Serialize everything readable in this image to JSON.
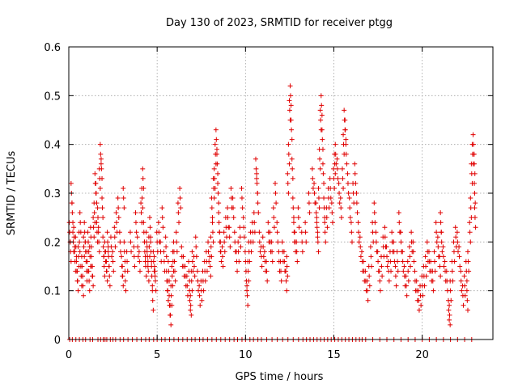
{
  "chart_data": {
    "type": "scatter",
    "title": "Day 130 of 2023, SRMTID for receiver ptgg",
    "xlabel": "GPS time / hours",
    "ylabel": "SRMTID / TECUs",
    "xlim": [
      0,
      24
    ],
    "ylim": [
      0,
      0.6
    ],
    "xticks": [
      0,
      5,
      10,
      15,
      20
    ],
    "yticks": [
      0,
      0.1,
      0.2,
      0.3,
      0.4,
      0.5,
      0.6
    ],
    "xtick_labels": [
      "0",
      "5",
      "10",
      "15",
      "20"
    ],
    "ytick_labels": [
      "0",
      "0.1",
      "0.2",
      "0.3",
      "0.4",
      "0.5",
      "0.6"
    ],
    "grid": true,
    "marker": "plus",
    "color": "#e00000",
    "series": [
      {
        "name": "SRMTID",
        "points": [
          [
            0.05,
            0.22
          ],
          [
            0.1,
            0.18
          ],
          [
            0.15,
            0.3
          ],
          [
            0.2,
            0.26
          ],
          [
            0.25,
            0.2
          ],
          [
            0.3,
            0.21
          ],
          [
            0.35,
            0.16
          ],
          [
            0.4,
            0.19
          ],
          [
            0.45,
            0.14
          ],
          [
            0.5,
            0.12
          ],
          [
            0.55,
            0.17
          ],
          [
            0.6,
            0.2
          ],
          [
            0.65,
            0.24
          ],
          [
            0.7,
            0.13
          ],
          [
            0.75,
            0.15
          ],
          [
            0.8,
            0.11
          ],
          [
            0.85,
            0.19
          ],
          [
            0.9,
            0.22
          ],
          [
            0.95,
            0.18
          ],
          [
            1.0,
            0.14
          ],
          [
            1.05,
            0.16
          ],
          [
            1.1,
            0.2
          ],
          [
            1.15,
            0.12
          ],
          [
            1.2,
            0.17
          ],
          [
            1.25,
            0.21
          ],
          [
            1.3,
            0.15
          ],
          [
            1.35,
            0.13
          ],
          [
            1.4,
            0.23
          ],
          [
            1.45,
            0.26
          ],
          [
            1.5,
            0.32
          ],
          [
            1.55,
            0.3
          ],
          [
            1.6,
            0.22
          ],
          [
            1.65,
            0.25
          ],
          [
            1.7,
            0.2
          ],
          [
            1.75,
            0.33
          ],
          [
            1.8,
            0.38
          ],
          [
            1.85,
            0.35
          ],
          [
            1.9,
            0.27
          ],
          [
            1.95,
            0.19
          ],
          [
            2.0,
            0.15
          ],
          [
            2.05,
            0.18
          ],
          [
            2.1,
            0.16
          ],
          [
            2.15,
            0.14
          ],
          [
            2.2,
            0.2
          ],
          [
            2.25,
            0.17
          ],
          [
            2.3,
            0.13
          ],
          [
            2.4,
            0.19
          ],
          [
            2.5,
            0.16
          ],
          [
            2.6,
            0.21
          ],
          [
            2.7,
            0.24
          ],
          [
            2.8,
            0.27
          ],
          [
            2.9,
            0.2
          ],
          [
            3.0,
            0.15
          ],
          [
            3.05,
            0.13
          ],
          [
            3.1,
            0.29
          ],
          [
            3.15,
            0.18
          ],
          [
            3.2,
            0.12
          ],
          [
            3.3,
            0.16
          ],
          [
            3.5,
            0.2
          ],
          [
            3.7,
            0.17
          ],
          [
            3.8,
            0.24
          ],
          [
            3.9,
            0.19
          ],
          [
            4.0,
            0.16
          ],
          [
            4.1,
            0.26
          ],
          [
            4.15,
            0.29
          ],
          [
            4.2,
            0.33
          ],
          [
            4.25,
            0.22
          ],
          [
            4.3,
            0.18
          ],
          [
            4.35,
            0.15
          ],
          [
            4.4,
            0.2
          ],
          [
            4.45,
            0.17
          ],
          [
            4.5,
            0.14
          ],
          [
            4.55,
            0.19
          ],
          [
            4.6,
            0.23
          ],
          [
            4.65,
            0.18
          ],
          [
            4.7,
            0.13
          ],
          [
            4.75,
            0.08
          ],
          [
            4.8,
            0.16
          ],
          [
            4.85,
            0.15
          ],
          [
            4.9,
            0.12
          ],
          [
            5.0,
            0.2
          ],
          [
            5.1,
            0.22
          ],
          [
            5.2,
            0.18
          ],
          [
            5.3,
            0.25
          ],
          [
            5.4,
            0.16
          ],
          [
            5.5,
            0.19
          ],
          [
            5.55,
            0.12
          ],
          [
            5.6,
            0.1
          ],
          [
            5.65,
            0.14
          ],
          [
            5.7,
            0.07
          ],
          [
            5.75,
            0.05
          ],
          [
            5.8,
            0.09
          ],
          [
            5.85,
            0.13
          ],
          [
            5.9,
            0.16
          ],
          [
            5.95,
            0.18
          ],
          [
            6.0,
            0.14
          ],
          [
            6.1,
            0.2
          ],
          [
            6.2,
            0.26
          ],
          [
            6.3,
            0.29
          ],
          [
            6.4,
            0.17
          ],
          [
            6.5,
            0.15
          ],
          [
            6.6,
            0.13
          ],
          [
            6.7,
            0.11
          ],
          [
            6.8,
            0.14
          ],
          [
            6.85,
            0.08
          ],
          [
            6.9,
            0.07
          ],
          [
            6.95,
            0.12
          ],
          [
            7.0,
            0.16
          ],
          [
            7.1,
            0.15
          ],
          [
            7.2,
            0.19
          ],
          [
            7.3,
            0.12
          ],
          [
            7.4,
            0.09
          ],
          [
            7.5,
            0.1
          ],
          [
            7.6,
            0.12
          ],
          [
            7.7,
            0.14
          ],
          [
            7.8,
            0.16
          ],
          [
            7.9,
            0.18
          ],
          [
            8.0,
            0.15
          ],
          [
            8.05,
            0.19
          ],
          [
            8.1,
            0.27
          ],
          [
            8.15,
            0.22
          ],
          [
            8.2,
            0.31
          ],
          [
            8.25,
            0.33
          ],
          [
            8.3,
            0.38
          ],
          [
            8.35,
            0.41
          ],
          [
            8.4,
            0.36
          ],
          [
            8.45,
            0.3
          ],
          [
            8.5,
            0.24
          ],
          [
            8.55,
            0.2
          ],
          [
            8.6,
            0.18
          ],
          [
            8.7,
            0.17
          ],
          [
            8.8,
            0.2
          ],
          [
            8.9,
            0.23
          ],
          [
            9.0,
            0.25
          ],
          [
            9.1,
            0.21
          ],
          [
            9.2,
            0.29
          ],
          [
            9.3,
            0.27
          ],
          [
            9.4,
            0.2
          ],
          [
            9.5,
            0.16
          ],
          [
            9.6,
            0.18
          ],
          [
            9.7,
            0.21
          ],
          [
            9.8,
            0.29
          ],
          [
            9.9,
            0.23
          ],
          [
            10.0,
            0.16
          ],
          [
            10.05,
            0.12
          ],
          [
            10.1,
            0.09
          ],
          [
            10.15,
            0.14
          ],
          [
            10.2,
            0.18
          ],
          [
            10.3,
            0.2
          ],
          [
            10.4,
            0.22
          ],
          [
            10.5,
            0.24
          ],
          [
            10.6,
            0.35
          ],
          [
            10.65,
            0.32
          ],
          [
            10.7,
            0.28
          ],
          [
            10.8,
            0.2
          ],
          [
            10.9,
            0.17
          ],
          [
            11.0,
            0.19
          ],
          [
            11.1,
            0.16
          ],
          [
            11.2,
            0.14
          ],
          [
            11.3,
            0.22
          ],
          [
            11.4,
            0.2
          ],
          [
            11.5,
            0.18
          ],
          [
            11.6,
            0.25
          ],
          [
            11.7,
            0.3
          ],
          [
            11.8,
            0.22
          ],
          [
            11.9,
            0.16
          ],
          [
            12.0,
            0.14
          ],
          [
            12.1,
            0.18
          ],
          [
            12.2,
            0.16
          ],
          [
            12.3,
            0.12
          ],
          [
            12.35,
            0.15
          ],
          [
            12.4,
            0.32
          ],
          [
            12.45,
            0.38
          ],
          [
            12.5,
            0.47
          ],
          [
            12.55,
            0.5
          ],
          [
            12.6,
            0.43
          ],
          [
            12.65,
            0.35
          ],
          [
            12.7,
            0.27
          ],
          [
            12.75,
            0.22
          ],
          [
            12.8,
            0.2
          ],
          [
            12.9,
            0.18
          ],
          [
            13.0,
            0.25
          ],
          [
            13.2,
            0.2
          ],
          [
            13.4,
            0.22
          ],
          [
            13.6,
            0.28
          ],
          [
            13.8,
            0.33
          ],
          [
            13.9,
            0.3
          ],
          [
            14.0,
            0.26
          ],
          [
            14.05,
            0.23
          ],
          [
            14.1,
            0.2
          ],
          [
            14.15,
            0.29
          ],
          [
            14.2,
            0.37
          ],
          [
            14.25,
            0.45
          ],
          [
            14.3,
            0.48
          ],
          [
            14.35,
            0.41
          ],
          [
            14.4,
            0.34
          ],
          [
            14.45,
            0.27
          ],
          [
            14.5,
            0.22
          ],
          [
            14.6,
            0.25
          ],
          [
            14.7,
            0.29
          ],
          [
            14.8,
            0.31
          ],
          [
            14.9,
            0.26
          ],
          [
            15.0,
            0.33
          ],
          [
            15.05,
            0.36
          ],
          [
            15.1,
            0.38
          ],
          [
            15.2,
            0.35
          ],
          [
            15.3,
            0.3
          ],
          [
            15.4,
            0.27
          ],
          [
            15.5,
            0.33
          ],
          [
            15.55,
            0.4
          ],
          [
            15.6,
            0.45
          ],
          [
            15.65,
            0.43
          ],
          [
            15.7,
            0.38
          ],
          [
            15.8,
            0.32
          ],
          [
            15.9,
            0.27
          ],
          [
            16.0,
            0.22
          ],
          [
            16.1,
            0.3
          ],
          [
            16.2,
            0.34
          ],
          [
            16.3,
            0.28
          ],
          [
            16.4,
            0.22
          ],
          [
            16.5,
            0.19
          ],
          [
            16.6,
            0.16
          ],
          [
            16.7,
            0.14
          ],
          [
            16.8,
            0.12
          ],
          [
            16.9,
            0.1
          ],
          [
            17.0,
            0.13
          ],
          [
            17.1,
            0.17
          ],
          [
            17.2,
            0.22
          ],
          [
            17.3,
            0.26
          ],
          [
            17.4,
            0.2
          ],
          [
            17.5,
            0.16
          ],
          [
            17.6,
            0.12
          ],
          [
            17.7,
            0.15
          ],
          [
            17.8,
            0.19
          ],
          [
            17.9,
            0.21
          ],
          [
            18.0,
            0.17
          ],
          [
            18.1,
            0.14
          ],
          [
            18.2,
            0.16
          ],
          [
            18.3,
            0.2
          ],
          [
            18.4,
            0.18
          ],
          [
            18.5,
            0.13
          ],
          [
            18.6,
            0.16
          ],
          [
            18.7,
            0.24
          ],
          [
            18.8,
            0.2
          ],
          [
            18.9,
            0.16
          ],
          [
            19.0,
            0.13
          ],
          [
            19.1,
            0.11
          ],
          [
            19.2,
            0.14
          ],
          [
            19.3,
            0.17
          ],
          [
            19.4,
            0.2
          ],
          [
            19.5,
            0.18
          ],
          [
            19.6,
            0.12
          ],
          [
            19.7,
            0.1
          ],
          [
            19.8,
            0.08
          ],
          [
            19.9,
            0.09
          ],
          [
            20.0,
            0.11
          ],
          [
            20.1,
            0.13
          ],
          [
            20.2,
            0.15
          ],
          [
            20.3,
            0.18
          ],
          [
            20.4,
            0.16
          ],
          [
            20.5,
            0.14
          ],
          [
            20.6,
            0.12
          ],
          [
            20.7,
            0.16
          ],
          [
            20.8,
            0.22
          ],
          [
            20.9,
            0.19
          ],
          [
            21.0,
            0.15
          ],
          [
            21.05,
            0.24
          ],
          [
            21.1,
            0.2
          ],
          [
            21.2,
            0.17
          ],
          [
            21.3,
            0.14
          ],
          [
            21.4,
            0.12
          ],
          [
            21.5,
            0.06
          ],
          [
            21.55,
            0.05
          ],
          [
            21.6,
            0.1
          ],
          [
            21.7,
            0.14
          ],
          [
            21.8,
            0.18
          ],
          [
            21.9,
            0.21
          ],
          [
            22.0,
            0.2
          ],
          [
            22.1,
            0.17
          ],
          [
            22.2,
            0.12
          ],
          [
            22.3,
            0.09
          ],
          [
            22.4,
            0.11
          ],
          [
            22.5,
            0.14
          ],
          [
            22.55,
            0.08
          ],
          [
            22.6,
            0.16
          ],
          [
            22.7,
            0.22
          ],
          [
            22.75,
            0.27
          ],
          [
            22.8,
            0.34
          ],
          [
            22.85,
            0.38
          ],
          [
            22.9,
            0.4
          ],
          [
            22.95,
            0.36
          ],
          [
            22.97,
            0.3
          ],
          [
            22.99,
            0.25
          ]
        ],
        "zero_values_x": [
          0.05,
          0.2,
          0.4,
          0.6,
          0.8,
          0.95,
          1.2,
          1.35,
          1.65,
          1.8,
          1.95,
          2.05,
          2.15,
          2.35,
          2.5,
          2.65,
          2.9,
          3.1,
          3.35,
          3.6,
          3.85,
          4.1,
          4.35,
          4.55,
          4.8,
          5.0,
          5.25,
          5.45,
          5.7,
          5.95,
          6.2,
          6.45,
          6.7,
          6.95,
          7.15,
          7.4,
          7.6,
          7.85,
          8.1,
          8.35,
          8.6,
          8.85,
          9.1,
          9.35,
          9.55,
          9.8,
          10.0,
          10.25,
          10.45,
          10.7,
          10.9,
          11.2,
          11.5,
          11.8,
          12.1,
          12.4,
          12.7,
          13.0,
          13.25,
          13.45,
          13.65,
          13.85,
          14.05,
          14.25,
          14.45,
          14.65,
          14.85,
          15.05,
          15.25,
          15.45,
          15.65,
          15.85,
          16.05,
          16.25,
          16.45,
          16.6,
          16.8,
          17.2,
          17.6,
          18.0,
          18.4,
          18.8,
          19.2,
          19.6,
          20.0,
          20.4,
          20.8,
          21.2,
          21.6,
          22.0,
          22.4,
          22.8
        ]
      }
    ]
  }
}
